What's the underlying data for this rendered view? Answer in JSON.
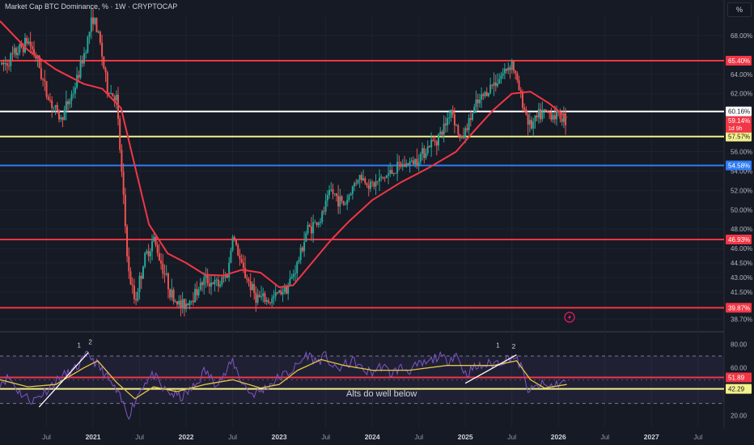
{
  "header": {
    "title": "Market Cap BTC Dominance, % · 1W · CRYPTOCAP",
    "unit_button": "%"
  },
  "chart_data": [
    {
      "type": "candlestick",
      "title": "Market Cap BTC Dominance, % · 1W · CRYPTOCAP",
      "y_unit": "%",
      "ylim": [
        37.9,
        70.0
      ],
      "y_ticks": [
        68.0,
        64.0,
        62.0,
        56.0,
        54.0,
        52.0,
        50.0,
        48.0,
        46.0,
        44.5,
        43.0,
        41.5,
        38.7
      ],
      "y_tick_labels": [
        "68.00%",
        "64.00%",
        "62.00%",
        "56.00%",
        "54.00%",
        "52.00%",
        "50.00%",
        "48.00%",
        "46.00%",
        "44.50%",
        "43.00%",
        "41.50%",
        "38.70%"
      ],
      "x_ticks": [
        {
          "label": "Jul",
          "t": 2020.5
        },
        {
          "label": "2021",
          "t": 2021.0
        },
        {
          "label": "Jul",
          "t": 2021.5
        },
        {
          "label": "2022",
          "t": 2022.0
        },
        {
          "label": "Jul",
          "t": 2022.5
        },
        {
          "label": "2023",
          "t": 2023.0
        },
        {
          "label": "Jul",
          "t": 2023.5
        },
        {
          "label": "2024",
          "t": 2024.0
        },
        {
          "label": "Jul",
          "t": 2024.5
        },
        {
          "label": "2025",
          "t": 2025.0
        },
        {
          "label": "Jul",
          "t": 2025.5
        },
        {
          "label": "2026",
          "t": 2026.0
        },
        {
          "label": "Jul",
          "t": 2026.5
        },
        {
          "label": "2027",
          "t": 2027.0
        },
        {
          "label": "Jul",
          "t": 2027.5
        }
      ],
      "price_path": [
        [
          2020.05,
          65.0
        ],
        [
          2020.2,
          66.5
        ],
        [
          2020.3,
          67.5
        ],
        [
          2020.4,
          65.5
        ],
        [
          2020.5,
          62.0
        ],
        [
          2020.65,
          59.3
        ],
        [
          2020.8,
          62.5
        ],
        [
          2020.9,
          66.0
        ],
        [
          2021.0,
          70.0
        ],
        [
          2021.08,
          67.0
        ],
        [
          2021.15,
          62.5
        ],
        [
          2021.25,
          61.5
        ],
        [
          2021.32,
          52.0
        ],
        [
          2021.38,
          43.5
        ],
        [
          2021.45,
          40.5
        ],
        [
          2021.55,
          44.8
        ],
        [
          2021.65,
          47.0
        ],
        [
          2021.75,
          44.0
        ],
        [
          2021.85,
          41.0
        ],
        [
          2021.95,
          40.0
        ],
        [
          2022.05,
          40.8
        ],
        [
          2022.2,
          42.8
        ],
        [
          2022.35,
          42.2
        ],
        [
          2022.45,
          43.5
        ],
        [
          2022.5,
          47.5
        ],
        [
          2022.6,
          44.0
        ],
        [
          2022.75,
          41.0
        ],
        [
          2022.9,
          40.5
        ],
        [
          2023.0,
          41.5
        ],
        [
          2023.1,
          42.2
        ],
        [
          2023.2,
          44.5
        ],
        [
          2023.3,
          48.0
        ],
        [
          2023.45,
          49.0
        ],
        [
          2023.55,
          52.0
        ],
        [
          2023.7,
          50.5
        ],
        [
          2023.85,
          53.5
        ],
        [
          2024.0,
          52.5
        ],
        [
          2024.15,
          53.5
        ],
        [
          2024.3,
          54.5
        ],
        [
          2024.45,
          55.0
        ],
        [
          2024.6,
          56.5
        ],
        [
          2024.75,
          58.0
        ],
        [
          2024.85,
          60.5
        ],
        [
          2024.95,
          57.0
        ],
        [
          2025.1,
          60.5
        ],
        [
          2025.25,
          62.5
        ],
        [
          2025.4,
          64.0
        ],
        [
          2025.5,
          65.3
        ],
        [
          2025.6,
          61.5
        ],
        [
          2025.7,
          58.5
        ],
        [
          2025.8,
          59.8
        ],
        [
          2025.9,
          60.0
        ],
        [
          2026.05,
          59.6
        ],
        [
          2026.09,
          59.14
        ]
      ],
      "moving_average": [
        [
          2020.0,
          69.5
        ],
        [
          2020.3,
          66.5
        ],
        [
          2020.6,
          64.5
        ],
        [
          2020.9,
          63.0
        ],
        [
          2021.1,
          62.5
        ],
        [
          2021.3,
          60.5
        ],
        [
          2021.45,
          54.5
        ],
        [
          2021.6,
          48.5
        ],
        [
          2021.8,
          45.5
        ],
        [
          2022.0,
          44.5
        ],
        [
          2022.2,
          43.3
        ],
        [
          2022.4,
          43.2
        ],
        [
          2022.6,
          43.8
        ],
        [
          2022.8,
          43.5
        ],
        [
          2023.0,
          42.0
        ],
        [
          2023.15,
          42.2
        ],
        [
          2023.35,
          44.5
        ],
        [
          2023.55,
          46.8
        ],
        [
          2023.75,
          48.8
        ],
        [
          2024.0,
          51.0
        ],
        [
          2024.3,
          52.8
        ],
        [
          2024.6,
          54.3
        ],
        [
          2024.9,
          56.0
        ],
        [
          2025.1,
          58.2
        ],
        [
          2025.3,
          60.3
        ],
        [
          2025.5,
          62.0
        ],
        [
          2025.7,
          62.2
        ],
        [
          2025.9,
          61.0
        ],
        [
          2026.09,
          59.5
        ]
      ],
      "horizontal_levels": [
        {
          "value": 65.4,
          "label": "65.40%",
          "color": "#f23645"
        },
        {
          "value": 60.16,
          "label": "60.16%",
          "color": "#ffffff"
        },
        {
          "value": 57.57,
          "label": "57.57%",
          "color": "#f4f08c"
        },
        {
          "value": 54.58,
          "label": "54.58%",
          "color": "#2f7cf5"
        },
        {
          "value": 46.93,
          "label": "46.93%",
          "color": "#f23645"
        },
        {
          "value": 39.87,
          "label": "39.87%",
          "color": "#f23645"
        }
      ],
      "last_price": {
        "value": 59.14,
        "label": "59.14%",
        "countdown": "1d 9h",
        "color": "#f23645"
      },
      "colors": {
        "up": "#26a69a",
        "down": "#ef5350",
        "ma": "#f23645"
      }
    },
    {
      "type": "line",
      "indicator": "RSI",
      "ylim": [
        10,
        85
      ],
      "y_ticks": [
        80,
        60,
        20
      ],
      "y_tick_labels": [
        "80.00",
        "60.00",
        "20.00"
      ],
      "band": {
        "upper": 70,
        "lower": 30
      },
      "rsi": [
        [
          2020.0,
          48
        ],
        [
          2020.1,
          52
        ],
        [
          2020.2,
          40
        ],
        [
          2020.35,
          32
        ],
        [
          2020.45,
          38
        ],
        [
          2020.55,
          45
        ],
        [
          2020.65,
          52
        ],
        [
          2020.8,
          58
        ],
        [
          2020.95,
          72
        ],
        [
          2021.05,
          62
        ],
        [
          2021.15,
          52
        ],
        [
          2021.25,
          40
        ],
        [
          2021.32,
          30
        ],
        [
          2021.38,
          20
        ],
        [
          2021.45,
          32
        ],
        [
          2021.55,
          48
        ],
        [
          2021.65,
          54
        ],
        [
          2021.75,
          42
        ],
        [
          2021.85,
          38
        ],
        [
          2021.95,
          35
        ],
        [
          2022.1,
          45
        ],
        [
          2022.2,
          58
        ],
        [
          2022.3,
          48
        ],
        [
          2022.4,
          52
        ],
        [
          2022.5,
          66
        ],
        [
          2022.6,
          48
        ],
        [
          2022.7,
          38
        ],
        [
          2022.8,
          40
        ],
        [
          2022.9,
          46
        ],
        [
          2023.0,
          52
        ],
        [
          2023.1,
          56
        ],
        [
          2023.2,
          62
        ],
        [
          2023.3,
          72
        ],
        [
          2023.4,
          65
        ],
        [
          2023.5,
          70
        ],
        [
          2023.6,
          58
        ],
        [
          2023.7,
          62
        ],
        [
          2023.8,
          66
        ],
        [
          2023.9,
          58
        ],
        [
          2024.0,
          56
        ],
        [
          2024.1,
          62
        ],
        [
          2024.2,
          55
        ],
        [
          2024.3,
          60
        ],
        [
          2024.4,
          58
        ],
        [
          2024.5,
          62
        ],
        [
          2024.6,
          64
        ],
        [
          2024.7,
          70
        ],
        [
          2024.8,
          66
        ],
        [
          2024.9,
          72
        ],
        [
          2025.0,
          55
        ],
        [
          2025.1,
          60
        ],
        [
          2025.2,
          62
        ],
        [
          2025.3,
          64
        ],
        [
          2025.4,
          66
        ],
        [
          2025.5,
          70
        ],
        [
          2025.6,
          62
        ],
        [
          2025.65,
          45
        ],
        [
          2025.7,
          40
        ],
        [
          2025.8,
          46
        ],
        [
          2025.9,
          44
        ],
        [
          2026.0,
          47
        ],
        [
          2026.09,
          48
        ]
      ],
      "rsi_ma": [
        [
          2020.0,
          50
        ],
        [
          2020.3,
          44
        ],
        [
          2020.6,
          46
        ],
        [
          2020.9,
          60
        ],
        [
          2021.05,
          66
        ],
        [
          2021.25,
          48
        ],
        [
          2021.45,
          34
        ],
        [
          2021.65,
          44
        ],
        [
          2021.9,
          40
        ],
        [
          2022.2,
          46
        ],
        [
          2022.5,
          50
        ],
        [
          2022.8,
          43
        ],
        [
          2023.0,
          46
        ],
        [
          2023.2,
          58
        ],
        [
          2023.45,
          67
        ],
        [
          2023.7,
          62
        ],
        [
          2024.0,
          58
        ],
        [
          2024.4,
          58
        ],
        [
          2024.8,
          62
        ],
        [
          2025.0,
          62
        ],
        [
          2025.3,
          62
        ],
        [
          2025.55,
          66
        ],
        [
          2025.7,
          50
        ],
        [
          2025.85,
          43
        ],
        [
          2026.09,
          46
        ]
      ],
      "horizontal_levels": [
        {
          "value": 51.89,
          "label": "51.89",
          "color": "#f23645"
        },
        {
          "value": 42.29,
          "label": "42.29",
          "color": "#f4f08c"
        }
      ],
      "annotations": [
        {
          "text": "1",
          "t": 2020.85,
          "v": 77
        },
        {
          "text": "2",
          "t": 2020.97,
          "v": 80
        },
        {
          "text": "1",
          "t": 2025.35,
          "v": 77
        },
        {
          "text": "2",
          "t": 2025.52,
          "v": 76
        },
        {
          "text": "Alts do well below",
          "t": 2024.1,
          "v": 36
        }
      ],
      "trendlines": [
        {
          "from": [
            2020.42,
            27
          ],
          "to": [
            2020.95,
            73
          ]
        },
        {
          "from": [
            2025.0,
            47
          ],
          "to": [
            2025.55,
            71
          ]
        }
      ]
    }
  ]
}
